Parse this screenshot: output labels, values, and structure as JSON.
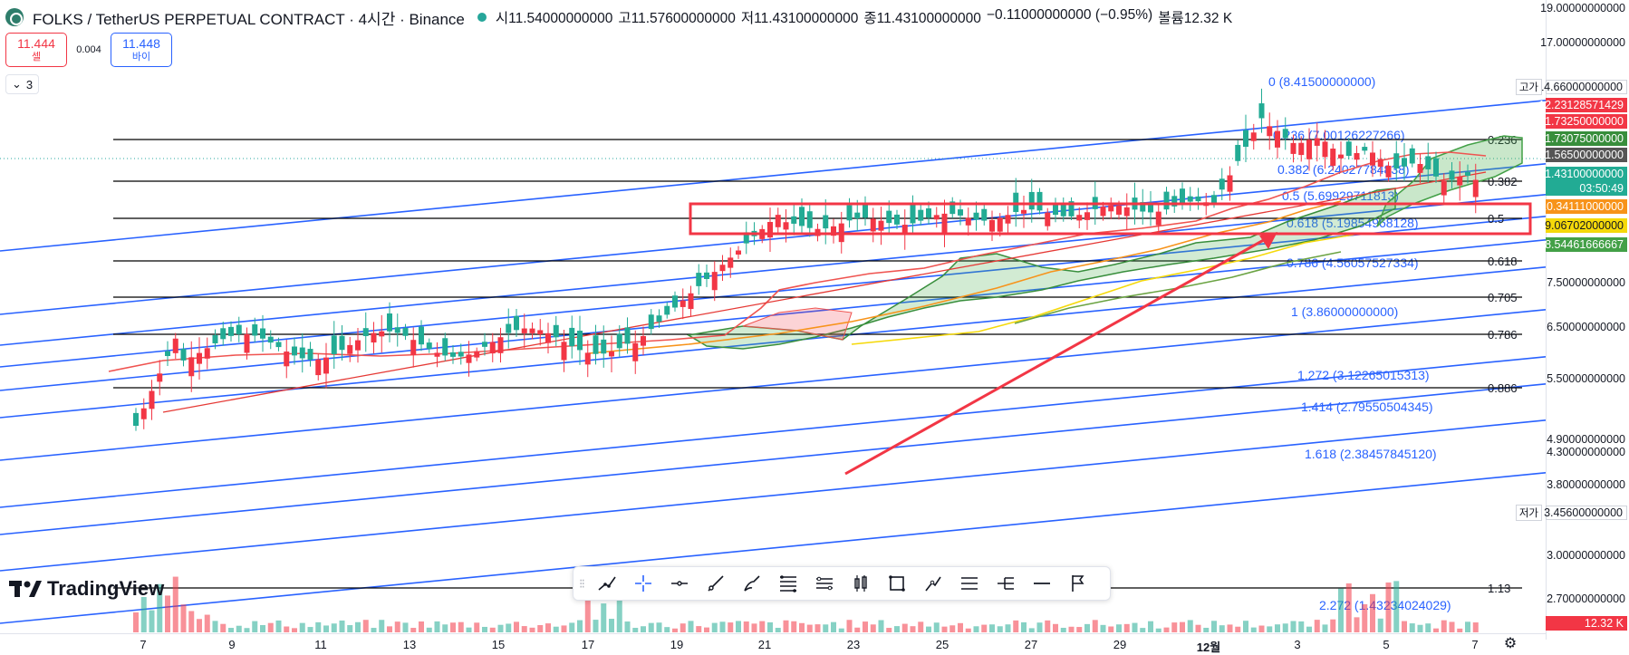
{
  "header": {
    "title": "FOLKS / TetherUS PERPETUAL CONTRACT · 4시간 · Binance",
    "ohlc": [
      {
        "k": "시",
        "v": "11.54000000000"
      },
      {
        "k": "고",
        "v": "11.57600000000"
      },
      {
        "k": "저",
        "v": "11.43100000000"
      },
      {
        "k": "종",
        "v": "11.43100000000"
      },
      {
        "k": "",
        "v": "−0.11000000000 (−0.95%)"
      },
      {
        "k": "볼륨",
        "v": "12.32 K"
      }
    ]
  },
  "trade": {
    "sell_price": "11.444",
    "sell_label": "셀",
    "spread": "0.004",
    "buy_price": "11.448",
    "buy_label": "바이"
  },
  "indicators_collapse": {
    "label": "3"
  },
  "price_ticks": [
    "19.00000000000",
    "17.00000000000",
    "6.50000000000",
    "7.50000000000",
    "5.50000000000",
    "4.90000000000",
    "4.30000000000",
    "3.80000000000",
    "3.00000000000",
    "2.70000000000"
  ],
  "price_tags": [
    {
      "text": "12.23128571429",
      "color": "#f23645"
    },
    {
      "text": "11.73250000000",
      "color": "#f23645"
    },
    {
      "text": "11.73075000000",
      "color": "#388e3c"
    },
    {
      "text": "11.56500000000",
      "color": "#555555"
    },
    {
      "text": "11.43100000000",
      "color": "#22ab94"
    },
    {
      "text": "03:50:49",
      "color": "#22ab94"
    },
    {
      "text": "10.34111000000",
      "color": "#f7931a"
    },
    {
      "text": "9.06702000000",
      "color": "#f5d90a"
    },
    {
      "text": "8.54461666667",
      "color": "#43a047"
    },
    {
      "text": "14.66000000000",
      "color": "#ffffff"
    },
    {
      "text": "3.45600000000",
      "color": "#ffffff"
    },
    {
      "text": "12.32 K",
      "color": "#f23645"
    }
  ],
  "high_label": "고가",
  "low_label": "저가",
  "fib_right_labels": [
    "0.236",
    "0.382",
    "0.5",
    "0.618",
    "0.705",
    "0.786",
    "0.886",
    "1.13"
  ],
  "fib_channel_labels": [
    "0 (8.41500000000)",
    "0.236 (7.00126227266)",
    "0.382 (6.24027784838)",
    "0.5 (5.69929711813)",
    "0.618 (5.19854968128)",
    "0.786 (4.56057527334)",
    "1 (3.86000000000)",
    "1.272 (3.12265015313)",
    "1.414 (2.79550504345)",
    "1.618 (2.38457845120)",
    "2.272 (1.43234024029)"
  ],
  "time_axis": [
    "7",
    "9",
    "11",
    "13",
    "15",
    "17",
    "19",
    "21",
    "23",
    "25",
    "27",
    "29",
    "12월",
    "3",
    "5",
    "7"
  ],
  "toolbar": {
    "tools": [
      "trend-line-tool",
      "crosshair-tool",
      "horizontal-ray-tool",
      "ray-tool",
      "brush-tool",
      "fib-retracement-tool",
      "fib-channel-tool",
      "long-position-tool",
      "rectangle-tool",
      "path-tool",
      "parallel-channel-tool",
      "pitchfork-tool",
      "horizontal-line-tool",
      "flag-tool"
    ]
  },
  "watermark": "TradingView",
  "colors": {
    "up": "#22ab94",
    "down": "#f23645",
    "channel": "#2962ff",
    "accent": "#f23645"
  }
}
